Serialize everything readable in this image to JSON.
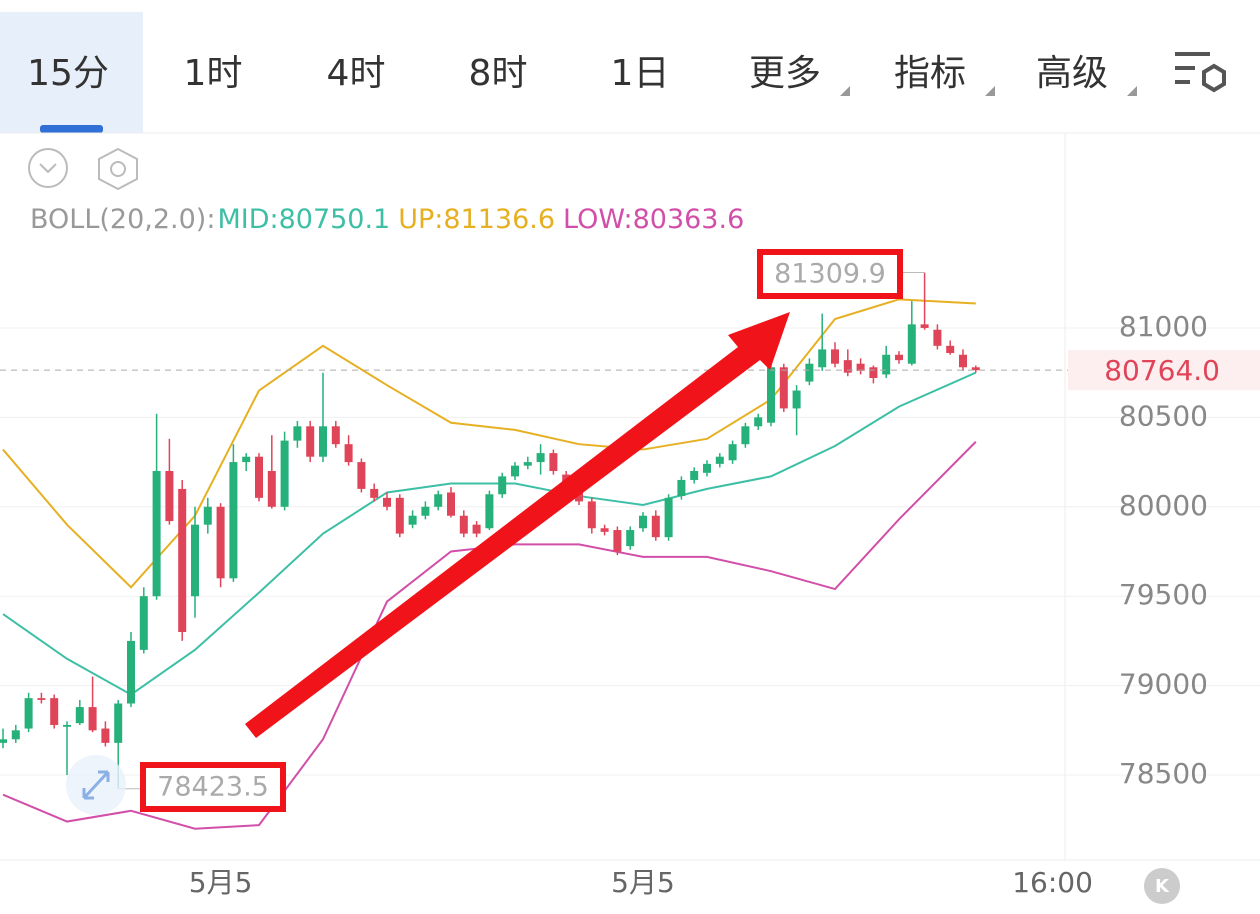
{
  "tabs": [
    "15分",
    "1时",
    "4时",
    "8时",
    "1日",
    "更多",
    "指标",
    "高级"
  ],
  "chart_data": {
    "type": "candlestick",
    "indicator_label": "BOLL(20,2.0):",
    "categories": [
      null,
      null,
      null,
      null,
      null,
      null,
      null,
      null,
      null,
      null,
      null,
      null,
      null,
      null,
      null,
      null,
      null,
      "5月5",
      null,
      null,
      null,
      null,
      null,
      null,
      null,
      null,
      null,
      null,
      null,
      null,
      null,
      null,
      null,
      null,
      null,
      null,
      null,
      null,
      null,
      null,
      null,
      null,
      null,
      null,
      null,
      null,
      null,
      null,
      null,
      null,
      "5月5",
      null,
      null,
      null,
      null,
      null,
      null,
      null,
      null,
      null,
      null,
      null,
      null,
      null,
      null,
      null,
      null,
      null,
      null,
      null,
      null,
      null,
      null,
      null,
      null,
      null,
      null,
      null,
      null,
      null,
      null,
      null,
      "16:00"
    ],
    "open": [
      78680,
      78700,
      78760,
      78930,
      78930,
      78770,
      78790,
      78880,
      78760,
      78680,
      78900,
      79200,
      79500,
      80200,
      80100,
      79500,
      79900,
      80000,
      79600,
      80250,
      80280,
      80200,
      80000,
      80370,
      80450,
      80280,
      80450,
      80350,
      80250,
      80100,
      80050,
      80050,
      79900,
      79950,
      80000,
      80080,
      79950,
      79900,
      79880,
      80070,
      80170,
      80230,
      80250,
      80300,
      80180,
      80100,
      80030,
      79880,
      79870,
      79780,
      79880,
      79950,
      79830,
      80060,
      80150,
      80190,
      80240,
      80260,
      80350,
      80450,
      80470,
      80780,
      80550,
      80700,
      80780,
      80880,
      80820,
      80800,
      80780,
      80740,
      80850,
      80800,
      81020,
      80990,
      80900,
      80850,
      80780,
      null,
      null,
      null,
      null,
      null,
      null
    ],
    "high": [
      78760,
      78780,
      78960,
      78960,
      78950,
      78800,
      78920,
      79050,
      78800,
      78920,
      79300,
      79550,
      80520,
      80380,
      80150,
      80000,
      80050,
      80020,
      80350,
      80300,
      80300,
      80400,
      80420,
      80480,
      80480,
      80750,
      80480,
      80400,
      80270,
      80130,
      80080,
      80070,
      79980,
      80030,
      80090,
      80110,
      79980,
      79920,
      80090,
      80190,
      80250,
      80280,
      80350,
      80320,
      80200,
      80120,
      80050,
      79900,
      79890,
      79890,
      79970,
      79980,
      80070,
      80170,
      80220,
      80260,
      80300,
      80370,
      80470,
      80520,
      80900,
      80800,
      80680,
      80830,
      81080,
      80920,
      80880,
      80830,
      80790,
      80900,
      80870,
      81150,
      81309.9,
      81020,
      80930,
      80880,
      80790,
      null,
      null,
      null,
      null,
      null,
      null
    ],
    "low": [
      78650,
      78680,
      78740,
      78900,
      78760,
      78500,
      78780,
      78740,
      78660,
      78423.5,
      78880,
      79180,
      79480,
      79900,
      79250,
      79380,
      79850,
      79550,
      79580,
      80200,
      80030,
      79990,
      79980,
      80330,
      80250,
      80250,
      80330,
      80230,
      80080,
      80030,
      79980,
      79830,
      79880,
      79930,
      79980,
      79940,
      79830,
      79830,
      79870,
      80050,
      80150,
      80210,
      80180,
      80180,
      80070,
      80010,
      79850,
      79840,
      79730,
      79760,
      79860,
      79810,
      79810,
      80040,
      80130,
      80170,
      80220,
      80240,
      80330,
      80430,
      80450,
      80530,
      80400,
      80680,
      80760,
      80780,
      80730,
      80740,
      80690,
      80720,
      80800,
      80790,
      80990,
      80880,
      80850,
      80760,
      80750,
      null,
      null,
      null,
      null,
      null,
      null
    ],
    "close": [
      78700,
      78750,
      78930,
      78920,
      78780,
      78780,
      78880,
      78750,
      78680,
      78900,
      79250,
      79500,
      80200,
      79920,
      79300,
      79900,
      80000,
      79600,
      80250,
      80280,
      80050,
      80000,
      80370,
      80450,
      80280,
      80450,
      80350,
      80250,
      80100,
      80050,
      80000,
      79850,
      79950,
      80000,
      80070,
      79950,
      79850,
      79850,
      80070,
      80170,
      80230,
      80250,
      80300,
      80200,
      80100,
      80030,
      79880,
      79860,
      79750,
      79870,
      79950,
      79830,
      80050,
      80150,
      80200,
      80240,
      80280,
      80350,
      80450,
      80500,
      80780,
      80550,
      80650,
      80800,
      80880,
      80800,
      80750,
      80760,
      80720,
      80850,
      80820,
      81020,
      81000,
      80900,
      80860,
      80780,
      80764,
      null,
      null,
      null,
      null,
      null,
      null
    ],
    "up_color": "#26b07a",
    "down_color": "#e04458",
    "series": [
      {
        "name": "MID:80750.1",
        "color": "#3dbfa6",
        "x": [
          0,
          5,
          10,
          15,
          20,
          25,
          30,
          35,
          40,
          45,
          50,
          55,
          60,
          65,
          70,
          76
        ],
        "values": [
          79400,
          79150,
          78950,
          79200,
          79520,
          79850,
          80080,
          80130,
          80130,
          80060,
          80010,
          80100,
          80170,
          80340,
          80560,
          80750.1
        ]
      },
      {
        "name": "UP:81136.6",
        "color": "#e6b022",
        "x": [
          0,
          5,
          10,
          15,
          20,
          25,
          30,
          35,
          40,
          45,
          50,
          55,
          60,
          65,
          70,
          76
        ],
        "values": [
          80320,
          79900,
          79550,
          79950,
          80650,
          80900,
          80680,
          80470,
          80430,
          80350,
          80320,
          80380,
          80600,
          81050,
          81160,
          81136.6
        ]
      },
      {
        "name": "LOW:80363.6",
        "color": "#d24fa9",
        "x": [
          0,
          5,
          10,
          15,
          20,
          25,
          30,
          35,
          40,
          45,
          50,
          55,
          60,
          65,
          70,
          76
        ],
        "values": [
          78390,
          78240,
          78300,
          78200,
          78220,
          78700,
          79470,
          79750,
          79790,
          79790,
          79720,
          79720,
          79640,
          79540,
          79930,
          80363.6
        ]
      }
    ],
    "ylim": [
      78025,
      82090
    ],
    "yticks": [
      78500,
      79000,
      79500,
      80000,
      80500,
      81000
    ],
    "grid": true,
    "last_price": {
      "value": 80764,
      "label": "80764.0"
    },
    "annotations": [
      "81309.9",
      "78423.5"
    ]
  }
}
